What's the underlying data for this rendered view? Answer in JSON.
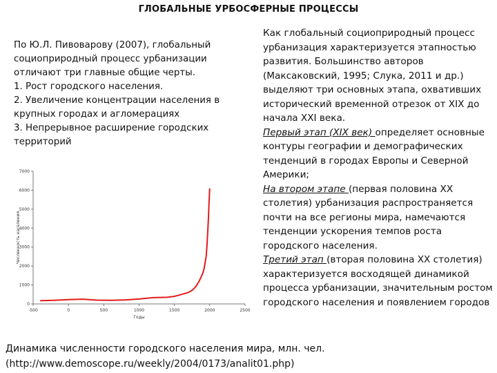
{
  "header": {
    "title": "ГЛОБАЛЬНЫЕ УРБОСФЕРНЫЕ ПРОЦЕССЫ"
  },
  "left": {
    "intro": "По Ю.Л. Пивоварову (2007), глобальный социоприродный процесс урбанизации отличают три главные общие черты.",
    "points": [
      "1. Рост городского населения.",
      "2. Увеличение концентрации населения в крупных городах и агломерациях",
      "3. Непрерывное расширение городских территорий"
    ]
  },
  "right": {
    "intro": "Как глобальный социоприродный процесс урбанизация характеризуется этапностью развития. Большинство авторов (Максаковский, 1995; Слука, 2011 и др.) выделяют три основных этапа, охвативших исторический временной отрезок от XIX до начала XXI века.",
    "stage1_title": "Первый этап (XIX век) ",
    "stage1_text": "определяет основные контуры географии и демографических тенденций в городах Европы и Северной Америки;",
    "stage2_title": "На втором этапе ",
    "stage2_text": "(первая половина XX столетия) урбанизация распространяется почти на все регионы мира, намечаются тенденции ускорения темпов роста городского населения.",
    "stage3_title": "Третий этап ",
    "stage3_text": "(вторая половина XX столетия) характеризуется восходящей динамикой процесса урбанизации, значительным ростом городского населения и появлением городов"
  },
  "caption": {
    "line1": "Динамика численности городского населения мира, млн. чел.",
    "line2": "(http://www.demoscope.ru/weekly/2004/0173/analit01.php)"
  },
  "chart_data": {
    "type": "line",
    "title": "",
    "xlabel": "Годы",
    "ylabel": "Численность населения",
    "xlim": [
      -500,
      2500
    ],
    "ylim": [
      0,
      7000
    ],
    "x_ticks": [
      -500,
      0,
      500,
      1000,
      1500,
      2000,
      2500
    ],
    "y_ticks": [
      0,
      1000,
      2000,
      3000,
      4000,
      5000,
      6000,
      7000
    ],
    "color": "#e31a1c",
    "series": [
      {
        "x": [
          -400,
          -200,
          0,
          200,
          400,
          600,
          800,
          1000,
          1200,
          1400,
          1500,
          1600,
          1700,
          1750,
          1800,
          1850,
          1900,
          1920,
          1940,
          1950,
          1960,
          1970,
          1980,
          1990,
          2000
        ],
        "y": [
          170,
          190,
          230,
          250,
          200,
          190,
          210,
          260,
          330,
          350,
          400,
          500,
          610,
          720,
          900,
          1200,
          1600,
          1850,
          2300,
          2500,
          3000,
          3700,
          4400,
          5300,
          6100
        ]
      }
    ]
  }
}
